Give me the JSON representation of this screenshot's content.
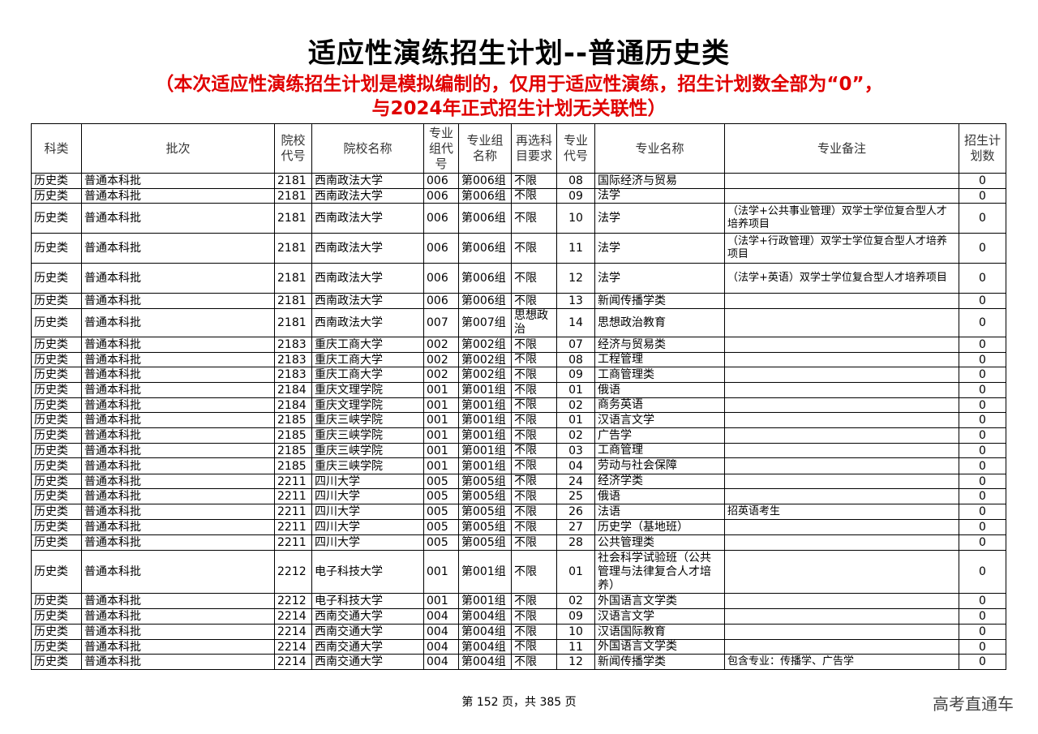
{
  "title": "适应性演练招生计划--普通历史类",
  "notice_line1": "（本次适应性演练招生计划是模拟编制的，仅用于适应性演练，招生计划数全部为“0”，",
  "notice_line2": "与2024年正式招生计划无关联性）",
  "columns": [
    "科类",
    "批次",
    "院校代号",
    "院校名称",
    "专业组代号",
    "专业组名称",
    "再选科目要求",
    "专业代号",
    "专业名称",
    "专业备注",
    "招生计划数"
  ],
  "rows": [
    [
      "历史类",
      "普通本科批",
      "2181",
      "西南政法大学",
      "006",
      "第006组",
      "不限",
      "08",
      "国际经济与贸易",
      "",
      "0"
    ],
    [
      "历史类",
      "普通本科批",
      "2181",
      "西南政法大学",
      "006",
      "第006组",
      "不限",
      "09",
      "法学",
      "",
      "0"
    ],
    [
      "历史类",
      "普通本科批",
      "2181",
      "西南政法大学",
      "006",
      "第006组",
      "不限",
      "10",
      "法学",
      "（法学+公共事业管理）双学士学位复合型人才培养项目",
      "0"
    ],
    [
      "历史类",
      "普通本科批",
      "2181",
      "西南政法大学",
      "006",
      "第006组",
      "不限",
      "11",
      "法学",
      "（法学+行政管理）双学士学位复合型人才培养项目",
      "0"
    ],
    [
      "历史类",
      "普通本科批",
      "2181",
      "西南政法大学",
      "006",
      "第006组",
      "不限",
      "12",
      "法学",
      "（法学+英语）双学士学位复合型人才培养项目",
      "0"
    ],
    [
      "历史类",
      "普通本科批",
      "2181",
      "西南政法大学",
      "006",
      "第006组",
      "不限",
      "13",
      "新闻传播学类",
      "",
      "0"
    ],
    [
      "历史类",
      "普通本科批",
      "2181",
      "西南政法大学",
      "007",
      "第007组",
      "思想政治",
      "14",
      "思想政治教育",
      "",
      "0"
    ],
    [
      "历史类",
      "普通本科批",
      "2183",
      "重庆工商大学",
      "002",
      "第002组",
      "不限",
      "07",
      "经济与贸易类",
      "",
      "0"
    ],
    [
      "历史类",
      "普通本科批",
      "2183",
      "重庆工商大学",
      "002",
      "第002组",
      "不限",
      "08",
      "工程管理",
      "",
      "0"
    ],
    [
      "历史类",
      "普通本科批",
      "2183",
      "重庆工商大学",
      "002",
      "第002组",
      "不限",
      "09",
      "工商管理类",
      "",
      "0"
    ],
    [
      "历史类",
      "普通本科批",
      "2184",
      "重庆文理学院",
      "001",
      "第001组",
      "不限",
      "01",
      "俄语",
      "",
      "0"
    ],
    [
      "历史类",
      "普通本科批",
      "2184",
      "重庆文理学院",
      "001",
      "第001组",
      "不限",
      "02",
      "商务英语",
      "",
      "0"
    ],
    [
      "历史类",
      "普通本科批",
      "2185",
      "重庆三峡学院",
      "001",
      "第001组",
      "不限",
      "01",
      "汉语言文学",
      "",
      "0"
    ],
    [
      "历史类",
      "普通本科批",
      "2185",
      "重庆三峡学院",
      "001",
      "第001组",
      "不限",
      "02",
      "广告学",
      "",
      "0"
    ],
    [
      "历史类",
      "普通本科批",
      "2185",
      "重庆三峡学院",
      "001",
      "第001组",
      "不限",
      "03",
      "工商管理",
      "",
      "0"
    ],
    [
      "历史类",
      "普通本科批",
      "2185",
      "重庆三峡学院",
      "001",
      "第001组",
      "不限",
      "04",
      "劳动与社会保障",
      "",
      "0"
    ],
    [
      "历史类",
      "普通本科批",
      "2211",
      "四川大学",
      "005",
      "第005组",
      "不限",
      "24",
      "经济学类",
      "",
      "0"
    ],
    [
      "历史类",
      "普通本科批",
      "2211",
      "四川大学",
      "005",
      "第005组",
      "不限",
      "25",
      "俄语",
      "",
      "0"
    ],
    [
      "历史类",
      "普通本科批",
      "2211",
      "四川大学",
      "005",
      "第005组",
      "不限",
      "26",
      "法语",
      "招英语考生",
      "0"
    ],
    [
      "历史类",
      "普通本科批",
      "2211",
      "四川大学",
      "005",
      "第005组",
      "不限",
      "27",
      "历史学（基地班）",
      "",
      "0"
    ],
    [
      "历史类",
      "普通本科批",
      "2211",
      "四川大学",
      "005",
      "第005组",
      "不限",
      "28",
      "公共管理类",
      "",
      "0"
    ],
    [
      "历史类",
      "普通本科批",
      "2212",
      "电子科技大学",
      "001",
      "第001组",
      "不限",
      "01",
      "社会科学试验班（公共管理与法律复合人才培养）",
      "",
      "0"
    ],
    [
      "历史类",
      "普通本科批",
      "2212",
      "电子科技大学",
      "001",
      "第001组",
      "不限",
      "02",
      "外国语言文学类",
      "",
      "0"
    ],
    [
      "历史类",
      "普通本科批",
      "2214",
      "西南交通大学",
      "004",
      "第004组",
      "不限",
      "09",
      "汉语言文学",
      "",
      "0"
    ],
    [
      "历史类",
      "普通本科批",
      "2214",
      "西南交通大学",
      "004",
      "第004组",
      "不限",
      "10",
      "汉语国际教育",
      "",
      "0"
    ],
    [
      "历史类",
      "普通本科批",
      "2214",
      "西南交通大学",
      "004",
      "第004组",
      "不限",
      "11",
      "外国语言文学类",
      "",
      "0"
    ],
    [
      "历史类",
      "普通本科批",
      "2214",
      "西南交通大学",
      "004",
      "第004组",
      "不限",
      "12",
      "新闻传播学类",
      "包含专业：传播学、广告学",
      "0"
    ]
  ],
  "footer": "第 152 页，共 385 页",
  "logo": "高考直通车"
}
